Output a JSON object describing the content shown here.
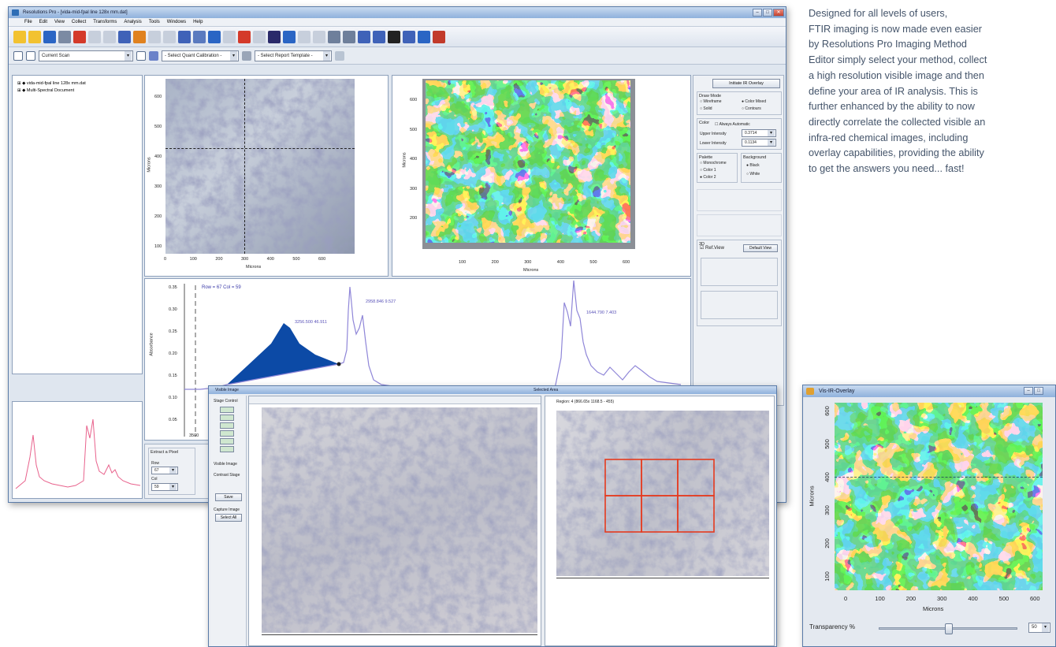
{
  "description_lines": [
    "Designed for all levels of users,",
    "FTIR imaging is now made even easier",
    "by Resolutions Pro Imaging Method",
    "Editor simply select your method, collect",
    "a high resolution visible image and then",
    "define your area of IR analysis. This is",
    "further enhanced by the ability to now",
    "directly correlate the collected visible an",
    "infra-red chemical images, including",
    "overlay capabilities, providing the ability",
    "to get the answers you need... fast!"
  ],
  "main_window": {
    "title": "Resolutions Pro - [vida-mid-fpal line 128x mm.dat]",
    "menu": [
      "File",
      "Edit",
      "View",
      "Collect",
      "Transforms",
      "Analysis",
      "Tools",
      "Windows",
      "Help"
    ],
    "current_scan_combo": "Current Scan",
    "quant_combo": "- Select Quant Calibration -",
    "report_combo": "- Select Report Template -",
    "tree": [
      "vida-mid-fpal line 128x mm.dat",
      "Multi-Spectral Document"
    ],
    "visible_axis": {
      "xlabel": "Microns",
      "ylabel": "Microns",
      "xticks": [
        "0",
        "100",
        "200",
        "300",
        "400",
        "500",
        "600"
      ],
      "yticks": [
        "600",
        "500",
        "400",
        "300",
        "200",
        "100"
      ]
    },
    "ir_axis": {
      "xlabel": "Microns",
      "ylabel": "Microns",
      "xticks": [
        "100",
        "200",
        "300",
        "400",
        "500",
        "600"
      ],
      "yticks": [
        "600",
        "500",
        "400",
        "300",
        "200"
      ]
    },
    "spectrum": {
      "ylabel": "Absorbance",
      "row_col": "Row = 67 Col = 59",
      "peak_labels": [
        "3256.500 46.911",
        "2958.846 9.527",
        "1644.790 7.403"
      ],
      "yticks": [
        "0.35",
        "0.30",
        "0.25",
        "0.20",
        "0.15",
        "0.10",
        "0.05"
      ],
      "xtick": "3500"
    },
    "right_panel": {
      "overlay_button": "Initiate IR Overlay",
      "draw_mode_title": "Draw Mode",
      "draw_modes": [
        "Wireframe",
        "Color Mixed",
        "Solid",
        "Contours"
      ],
      "color_title": "Color",
      "always_automatic": "Always Automatic",
      "upper_intensity_label": "Upper Intensity",
      "upper_intensity": "0.3714",
      "lower_intensity_label": "Lower Intensity",
      "lower_intensity": "0.1134",
      "palette_title": "Palette",
      "palettes": [
        "Monochrome",
        "Color 1",
        "Color 2"
      ],
      "background_title": "Background",
      "backgrounds": [
        "Black",
        "White"
      ],
      "view_3d_title": "3D",
      "reflow_label": "Ref.View",
      "default_view": "Default View"
    },
    "bottom_controls": {
      "group_title": "Extract a Pixel",
      "row_label": "Row",
      "row_value": "67",
      "col_label": "Col",
      "col_value": "59"
    }
  },
  "method_window": {
    "title": "Visible Image",
    "right_title": "Selected Area",
    "area_readout": "Region: 4 (866.65x 1168.5 - 455)",
    "side_labels": [
      "Stage Control",
      "Visible Image",
      "Contrast Stage",
      "Save",
      "Capture Image",
      "Select All"
    ],
    "grid_rows": 2,
    "grid_cols": 3
  },
  "overlay_window": {
    "title": "Vis-IR-Overlay",
    "xlabel": "Microns",
    "ylabel": "Microns",
    "xticks": [
      "0",
      "100",
      "200",
      "300",
      "400",
      "500",
      "600"
    ],
    "yticks": [
      "600",
      "500",
      "400",
      "300",
      "200",
      "100"
    ],
    "transparency_label": "Transparency %",
    "transparency_value": "50",
    "transparency_fraction": 0.5
  },
  "colors": {
    "ir_background": "#1fb6d4",
    "ir_green": "#2aa84a",
    "ir_yellow": "#ffe21a",
    "ir_red": "#e8321d",
    "spectrum_line": "#8f86d8",
    "spectrum_fill": "#0c4aa6",
    "selection_grid": "#e53a1e",
    "mini_spectrum": "#e8628c"
  }
}
